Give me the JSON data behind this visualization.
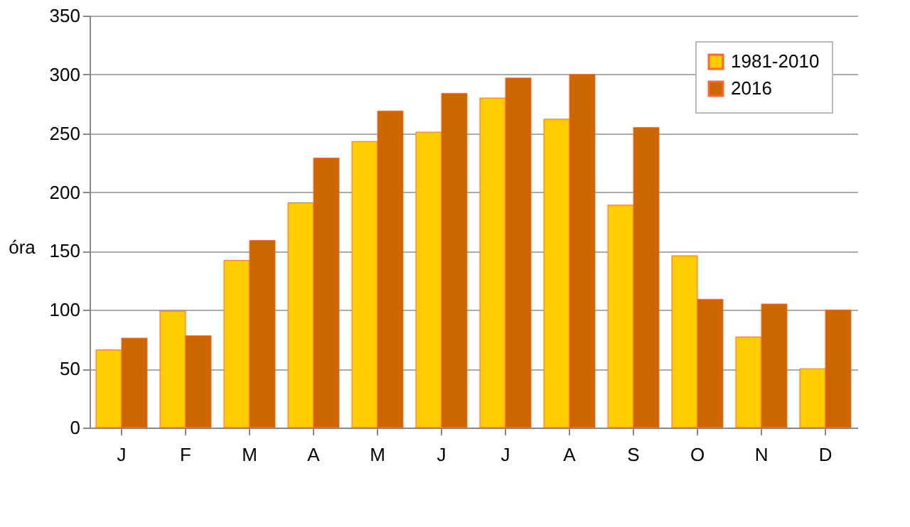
{
  "chart_data": {
    "type": "bar",
    "ylabel": "óra",
    "categories": [
      "J",
      "F",
      "M",
      "A",
      "M",
      "J",
      "J",
      "A",
      "S",
      "O",
      "N",
      "D"
    ],
    "series": [
      {
        "name": "1981-2010",
        "color": "#ffcc00",
        "values": [
          66,
          99,
          142,
          191,
          243,
          251,
          280,
          262,
          189,
          146,
          77,
          50
        ]
      },
      {
        "name": "2016",
        "color": "#cc6600",
        "values": [
          76,
          78,
          159,
          229,
          269,
          284,
          297,
          300,
          255,
          109,
          105,
          100
        ]
      }
    ],
    "ylim": [
      0,
      350
    ],
    "yticks": [
      0,
      50,
      100,
      150,
      200,
      250,
      300,
      350
    ],
    "grid": "y",
    "legend": "top right"
  }
}
